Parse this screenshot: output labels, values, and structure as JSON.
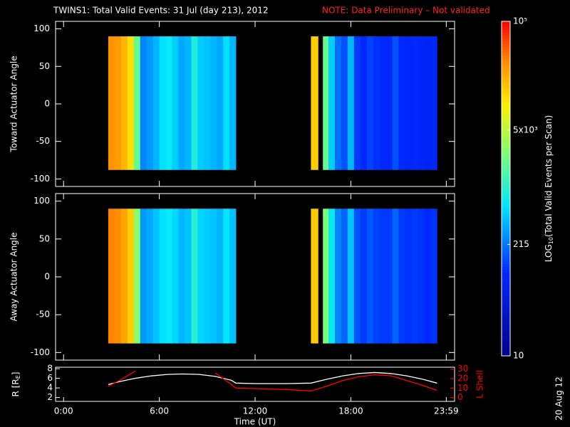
{
  "stamp": "20 Aug 12",
  "chart_data": [
    {
      "type": "heatmap",
      "title": "TWINS1: Total Valid Events: 31 Jul (day 213), 2012",
      "note": "NOTE: Data Preliminary – Not validated",
      "ylabel": "Toward Actuator Angle",
      "xlim": [
        -0.5,
        24.5
      ],
      "ylim": [
        -110,
        110
      ],
      "yticks": [
        -100,
        -50,
        0,
        50,
        100
      ],
      "angle_bins": [
        -88,
        90
      ],
      "segments": [
        {
          "bins": [
            2.8,
            3.2,
            3.6,
            4.0,
            4.4,
            4.8,
            5.2,
            5.6,
            6.0,
            6.4,
            6.8,
            7.2,
            7.6,
            8.0,
            8.4,
            8.8,
            9.2,
            9.6,
            10.0,
            10.4,
            10.8
          ],
          "values": [
            30000,
            28000,
            20000,
            12000,
            2000,
            250,
            300,
            400,
            600,
            700,
            500,
            350,
            400,
            900,
            500,
            450,
            400,
            350,
            600,
            400
          ]
        },
        {
          "bins": [
            15.5,
            15.95
          ],
          "values": [
            15000
          ]
        },
        {
          "bins": [
            16.25,
            16.6,
            17.0,
            17.4,
            17.8,
            18.2,
            18.6,
            19.0,
            19.4,
            19.8,
            20.2,
            20.6,
            21.0,
            21.4,
            21.8,
            22.2,
            22.6,
            23.0,
            23.4
          ],
          "values": [
            2000,
            500,
            200,
            150,
            400,
            120,
            100,
            130,
            110,
            100,
            100,
            150,
            100,
            90,
            100,
            90,
            80,
            90
          ]
        }
      ],
      "colorbar": {
        "label": [
          "LOG",
          "10",
          "(Total Valid Events per Scan)"
        ],
        "lim": [
          10,
          100000
        ],
        "log": true,
        "ticks": [
          10,
          215,
          {
            "value": 5000,
            "label": "5x10³"
          },
          {
            "value": 100000,
            "label": "10⁵"
          }
        ]
      }
    },
    {
      "type": "heatmap",
      "ylabel": "Away Actuator Angle",
      "xlim": [
        -0.5,
        24.5
      ],
      "ylim": [
        -110,
        110
      ],
      "yticks": [
        -100,
        -50,
        0,
        50,
        100
      ],
      "angle_bins": [
        -88,
        90
      ],
      "segments": [
        {
          "bins": [
            2.8,
            3.2,
            3.6,
            4.0,
            4.4,
            4.8,
            5.2,
            5.6,
            6.0,
            6.4,
            6.8,
            7.2,
            7.6,
            8.0,
            8.4,
            8.8,
            9.2,
            9.6,
            10.0,
            10.4,
            10.8
          ],
          "values": [
            35000,
            32000,
            25000,
            15000,
            3000,
            300,
            350,
            450,
            600,
            700,
            550,
            400,
            450,
            1000,
            550,
            500,
            450,
            400,
            650,
            450
          ]
        },
        {
          "bins": [
            15.5,
            15.95
          ],
          "values": [
            16000
          ]
        },
        {
          "bins": [
            16.25,
            16.6,
            17.0,
            17.4,
            17.8,
            18.2,
            18.6,
            19.0,
            19.4,
            19.8,
            20.2,
            20.6,
            21.0,
            21.4,
            21.8,
            22.2,
            22.6,
            23.0,
            23.4
          ],
          "values": [
            2500,
            700,
            250,
            180,
            450,
            150,
            120,
            160,
            130,
            120,
            120,
            180,
            120,
            110,
            120,
            110,
            100,
            110
          ]
        }
      ]
    },
    {
      "type": "line",
      "xlabel": "Time (UT)",
      "xlim": [
        -0.5,
        24.5
      ],
      "xticks": [
        {
          "value": 0,
          "label": "0:00"
        },
        {
          "value": 6,
          "label": "6:00"
        },
        {
          "value": 12,
          "label": "12:00"
        },
        {
          "value": 18,
          "label": "18:00"
        },
        {
          "value": 23.98,
          "label": "23:59"
        }
      ],
      "ylabel": [
        "R [R",
        "E",
        "]"
      ],
      "ylim": [
        1.2,
        8.3
      ],
      "yticks": [
        2,
        4,
        6,
        8
      ],
      "y2label": "L Shell",
      "y2lim": [
        -4,
        32
      ],
      "y2ticks": [
        0,
        10,
        20,
        30
      ],
      "x": [
        2.8,
        3.5,
        4.5,
        5.5,
        6.5,
        7.5,
        8.5,
        9.5,
        10.5,
        10.8,
        12,
        13,
        14,
        15.5,
        16.5,
        17.5,
        18.5,
        19.5,
        20.5,
        21.5,
        22.5,
        23.4
      ],
      "series": [
        {
          "color": "#ffffff",
          "values": [
            4.7,
            5.3,
            6.0,
            6.5,
            6.8,
            6.9,
            6.8,
            6.4,
            5.6,
            5.0,
            4.9,
            4.9,
            4.9,
            5.0,
            5.8,
            6.5,
            7.0,
            7.2,
            7.0,
            6.5,
            5.8,
            5.0
          ]
        },
        {
          "color": "#ff0000",
          "axis": "y2",
          "values": [
            12,
            18,
            28,
            null,
            null,
            null,
            null,
            26,
            14,
            10,
            9.5,
            9,
            8.5,
            7,
            12,
            18,
            22,
            24,
            23,
            18,
            13,
            7.5
          ]
        }
      ]
    }
  ]
}
